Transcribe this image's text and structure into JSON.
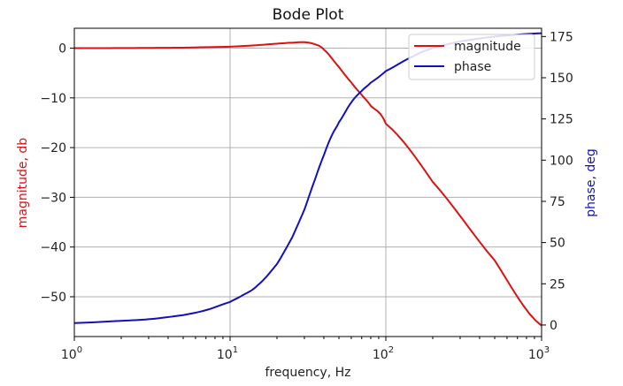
{
  "chart_data": {
    "type": "line",
    "title": "Bode Plot",
    "xlabel": "frequency, Hz",
    "xscale": "log",
    "xlim": [
      1,
      1000
    ],
    "xticks": [
      1,
      10,
      100,
      1000
    ],
    "xtick_labels": [
      {
        "base": "10",
        "exp": "0"
      },
      {
        "base": "10",
        "exp": "1"
      },
      {
        "base": "10",
        "exp": "2"
      },
      {
        "base": "10",
        "exp": "3"
      }
    ],
    "left_axis": {
      "label": "magnitude, db",
      "color": "#dd1111",
      "ylim": [
        -58,
        4
      ],
      "ticks": [
        0,
        -10,
        -20,
        -30,
        -40,
        -50
      ],
      "tick_labels": [
        "0",
        "−10",
        "−20",
        "−30",
        "−40",
        "−50"
      ]
    },
    "right_axis": {
      "label": "phase, deg",
      "color": "#1111bb",
      "ylim": [
        -7,
        180
      ],
      "ticks": [
        0,
        25,
        50,
        75,
        100,
        125,
        150,
        175
      ],
      "tick_labels": [
        "0",
        "25",
        "50",
        "75",
        "100",
        "125",
        "150",
        "175"
      ]
    },
    "grid": true,
    "legend": {
      "position": "top-right"
    },
    "series": [
      {
        "name": "magnitude",
        "axis": "left",
        "color": "#dd1111",
        "x": [
          1,
          2,
          3,
          5,
          7,
          10,
          15,
          20,
          25,
          30,
          35,
          40,
          50,
          60,
          70,
          80,
          100,
          200,
          500,
          1000
        ],
        "values": [
          0,
          0.02,
          0.05,
          0.1,
          0.2,
          0.3,
          0.6,
          0.9,
          1.1,
          1.2,
          0.8,
          -0.3,
          -3.8,
          -6.9,
          -9.4,
          -11.6,
          -15.2,
          -26.9,
          -42.7,
          -55.8
        ]
      },
      {
        "name": "phase",
        "axis": "right",
        "color": "#1111bb",
        "x": [
          1,
          2,
          3,
          5,
          7,
          10,
          12,
          15,
          20,
          25,
          30,
          35,
          40,
          45,
          50,
          60,
          70,
          80,
          100,
          150,
          200,
          300,
          500,
          1000
        ],
        "values": [
          1.2,
          2.5,
          3.5,
          6,
          9,
          14,
          18,
          24,
          37,
          53,
          70,
          88,
          103,
          115,
          123,
          135,
          142,
          147,
          154,
          163,
          168,
          172,
          175,
          177
        ]
      }
    ]
  }
}
